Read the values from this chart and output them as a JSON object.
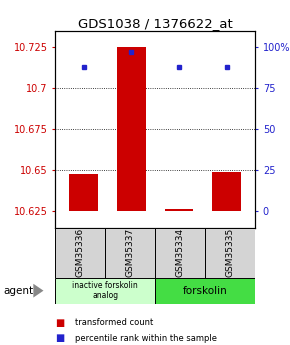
{
  "title": "GDS1038 / 1376622_at",
  "samples": [
    "GSM35336",
    "GSM35337",
    "GSM35334",
    "GSM35335"
  ],
  "x_positions": [
    1,
    2,
    3,
    4
  ],
  "bar_base": 10.625,
  "bar_tops": [
    10.648,
    10.725,
    10.6265,
    10.649
  ],
  "blue_y": [
    10.713,
    10.722,
    10.713,
    10.713
  ],
  "ylim": [
    10.615,
    10.735
  ],
  "left_yticks": [
    10.625,
    10.65,
    10.675,
    10.7,
    10.725
  ],
  "right_yticks_vals": [
    0,
    25,
    50,
    75,
    100
  ],
  "right_yticks_pos": [
    10.625,
    10.65,
    10.675,
    10.7,
    10.725
  ],
  "bar_color": "#cc0000",
  "blue_color": "#2222cc",
  "group1_label": "inactive forskolin\nanalog",
  "group2_label": "forskolin",
  "group1_color": "#ccffcc",
  "group2_color": "#44dd44",
  "agent_label": "agent",
  "legend_red": "transformed count",
  "legend_blue": "percentile rank within the sample",
  "title_fontsize": 9.5,
  "axis_fontsize": 7,
  "sample_fontsize": 6.5,
  "bar_width": 0.6
}
